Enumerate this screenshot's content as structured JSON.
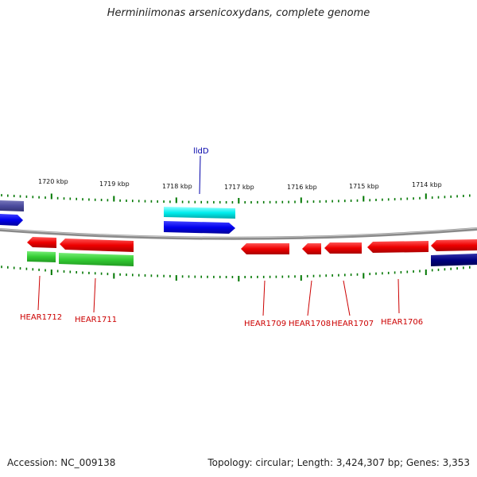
{
  "title": "Herminiimonas arsenicoxydans, complete genome",
  "footer": {
    "accession": "Accession: NC_009138",
    "topology": "Topology: circular; Length: 3,424,307 bp; Genes: 3,353"
  },
  "scale_labels": [
    "1720 kbp",
    "1719 kbp",
    "1718 kbp",
    "1717 kbp",
    "1716 kbp",
    "1715 kbp",
    "1714 kbp"
  ],
  "gene_labels": [
    "lldD",
    "HEAR1712",
    "HEAR1711",
    "HEAR1709",
    "HEAR1708",
    "HEAR1707",
    "HEAR1706"
  ],
  "colors": {
    "forward_red": "#ff0000",
    "reverse_red": "#ff0000",
    "green": "#33cc33",
    "blue": "#0000ff",
    "cyan": "#00ffff",
    "navy": "#000080",
    "slate": "#4b4b9e",
    "tick": "#007700",
    "backbone": "#808080",
    "label_red": "#cc0000",
    "label_blue": "#0000aa"
  }
}
